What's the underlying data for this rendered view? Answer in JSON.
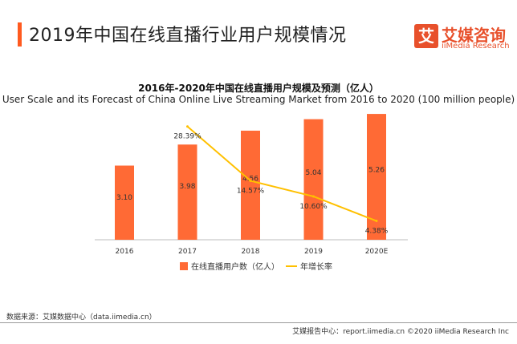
{
  "header": {
    "title": "2019年中国在线直播行业用户规模情况"
  },
  "logo": {
    "mark": "艾",
    "cn": "艾媒咨询",
    "en": "iiMedia Research"
  },
  "colors": {
    "accent": "#ff5a1f",
    "bar": "#ff6a35",
    "line": "#ffc000"
  },
  "chart_data": {
    "type": "bar",
    "title": "2016年-2020年中国在线直播用户规模及预测（亿人）",
    "subtitle": "User Scale and its Forecast of China Online Live Streaming Market from 2016 to 2020 (100 million people)",
    "categories": [
      "2016",
      "2017",
      "2018",
      "2019",
      "2020E"
    ],
    "series": [
      {
        "name": "在线直播用户数（亿人）",
        "type": "bar",
        "values": [
          3.1,
          3.98,
          4.56,
          5.04,
          5.26
        ],
        "labels": [
          "3.10",
          "3.98",
          "4.56",
          "5.04",
          "5.26"
        ]
      },
      {
        "name": "年增长率",
        "type": "line",
        "values": [
          null,
          28.39,
          14.57,
          10.6,
          4.38
        ],
        "labels": [
          "",
          "28.39%",
          "14.57%",
          "10.60%",
          "4.38%"
        ]
      }
    ],
    "ylim_bar": [
      0,
      6
    ],
    "ylim_line": [
      0,
      32
    ],
    "legend_position": "bottom",
    "grid": false
  },
  "footer": {
    "source": "数据来源：艾媒数据中心（data.iimedia.cn）",
    "copyright": "艾媒报告中心：report.iimedia.cn ©2020  iiMedia Research Inc"
  }
}
